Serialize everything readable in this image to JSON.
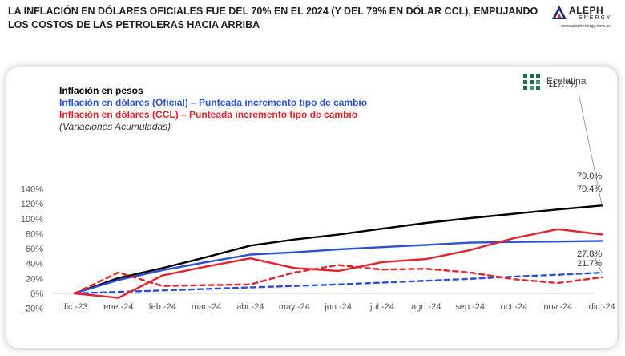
{
  "header": {
    "title": "LA INFLACIÓN EN DÓLARES OFICIALES FUE DEL 70% EN EL 2024 (Y DEL 79% EN DÓLAR CCL), EMPUJANDO LOS COSTOS DE LAS PETROLERAS HACIA ARRIBA"
  },
  "logo": {
    "name": "ALEPH",
    "sub": "ENERGY",
    "url": "www.alephenergy.com.ar"
  },
  "brand": {
    "name": "Ecolatina"
  },
  "colors": {
    "black": "#000000",
    "blue": "#2b50d8",
    "red": "#e8202a"
  },
  "chart_data": {
    "type": "line",
    "categories": [
      "dic.-23",
      "ene.-24",
      "feb.-24",
      "mar.-24",
      "abr.-24",
      "may.-24",
      "jun.-24",
      "jul.-24",
      "ago.-24",
      "sep.-24",
      "oct.-24",
      "nov.-24",
      "dic.-24"
    ],
    "ylim": [
      -20,
      140
    ],
    "yticks": [
      -20,
      0,
      20,
      40,
      60,
      80,
      100,
      120,
      140
    ],
    "ytick_labels": [
      "-20%",
      "0%",
      "20%",
      "40%",
      "60%",
      "80%",
      "100%",
      "120%",
      "140%"
    ],
    "grid": false,
    "legend_position": "top-left",
    "legend_note": "(Variaciones Acumuladas)",
    "series": [
      {
        "name": "Inflación en pesos",
        "color": "#000000",
        "style": "solid",
        "values": [
          0,
          20.6,
          33.9,
          48.6,
          64.1,
          72.2,
          78.8,
          86.7,
          94.4,
          100.9,
          106.7,
          112.4,
          117.7
        ],
        "end_label": "117.7%"
      },
      {
        "name": "Inflación en dólares (Oficial) – Punteada incremento tipo de cambio",
        "color": "#2b50d8",
        "style": "solid",
        "values": [
          0,
          18,
          31,
          42,
          52,
          55,
          59,
          62,
          65,
          68,
          69,
          69.5,
          70.4
        ],
        "end_label": "70.4%"
      },
      {
        "name": "",
        "color": "#2b50d8",
        "style": "dashed",
        "values": [
          0,
          2,
          4,
          6,
          8,
          10,
          12,
          14.5,
          17,
          19.5,
          22.5,
          25,
          27.8
        ],
        "end_label": "27.8%"
      },
      {
        "name": "Inflación en dólares (CCL) – Punteada incremento tipo de cambio",
        "color": "#e8202a",
        "style": "solid",
        "values": [
          0,
          -6,
          24,
          36,
          47,
          34,
          30,
          42,
          46,
          58,
          74,
          86,
          79
        ],
        "end_label": "79.0%"
      },
      {
        "name": "",
        "color": "#e8202a",
        "style": "dashed",
        "values": [
          0,
          28,
          10,
          11,
          12,
          28,
          38,
          32,
          33,
          28,
          19,
          14,
          21.7
        ],
        "end_label": "21.7%"
      }
    ]
  }
}
